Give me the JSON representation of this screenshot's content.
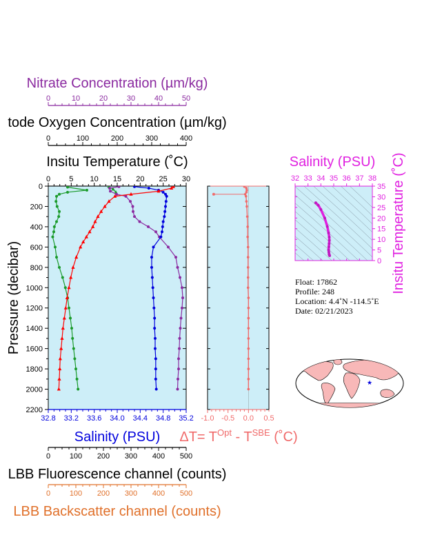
{
  "colors": {
    "panel_bg": "#cdeef8",
    "nitrate": "#8b2aa0",
    "oxygen": "#000000",
    "temperature": "#ff0000",
    "salinity": "#0000dd",
    "fluorescence": "#000000",
    "backscatter": "#e0702a",
    "delta_t": "#f06a6a",
    "ts_magenta": "#e020e0",
    "chlorophyll_green": "#1a9a2a"
  },
  "chart_data": [
    {
      "type": "line",
      "panel": "main profile",
      "ylabel": "Pressure (decibar)",
      "ylim": [
        2200,
        0
      ],
      "y_ticks": [
        "0",
        "200",
        "400",
        "600",
        "800",
        "1000",
        "1200",
        "1400",
        "1600",
        "1800",
        "2000",
        "2200"
      ],
      "axes": {
        "nitrate": {
          "label": "Nitrate Concentration (µm/kg)",
          "range": [
            0,
            50
          ],
          "ticks": [
            "0",
            "10",
            "20",
            "30",
            "40",
            "50"
          ]
        },
        "oxygen": {
          "label": "tode Oxygen Concentration (µm/kg)",
          "range": [
            0,
            400
          ],
          "ticks": [
            "0",
            "100",
            "200",
            "300",
            "400"
          ]
        },
        "temperature": {
          "label": "Insitu Temperature (˚C)",
          "range": [
            0,
            30
          ],
          "ticks": [
            "0",
            "5",
            "10",
            "15",
            "20",
            "25",
            "30"
          ]
        },
        "salinity": {
          "label": "Salinity (PSU)",
          "range": [
            32.8,
            35.2
          ],
          "ticks": [
            "32.8",
            "33.2",
            "33.6",
            "34.0",
            "34.4",
            "34.8",
            "35.2"
          ]
        },
        "fluorescence": {
          "label": "LBB Fluorescence channel (counts)",
          "range": [
            0,
            500
          ],
          "ticks": [
            "0",
            "100",
            "200",
            "300",
            "400",
            "500"
          ]
        },
        "backscatter": {
          "label": "LBB Backscatter channel (counts)",
          "range": [
            0,
            500
          ],
          "ticks": [
            "0",
            "100",
            "200",
            "300",
            "400",
            "500"
          ]
        }
      },
      "series": [
        {
          "key": "temperature",
          "pressure": [
            5,
            20,
            50,
            80,
            100,
            150,
            200,
            250,
            300,
            350,
            400,
            450,
            500,
            550,
            600,
            700,
            800,
            900,
            1000,
            1100,
            1200,
            1300,
            1400,
            1500,
            1600,
            1700,
            1800,
            1900,
            2000
          ],
          "values": [
            27.2,
            26.8,
            24.0,
            18.0,
            14.5,
            13.2,
            12.3,
            11.5,
            10.8,
            10.2,
            9.7,
            9.0,
            8.3,
            7.6,
            7.0,
            6.1,
            5.4,
            4.9,
            4.5,
            4.1,
            3.8,
            3.5,
            3.2,
            3.0,
            2.8,
            2.6,
            2.5,
            2.4,
            2.3
          ]
        },
        {
          "key": "salinity",
          "pressure": [
            5,
            20,
            40,
            60,
            80,
            100,
            150,
            200,
            250,
            300,
            350,
            400,
            450,
            500,
            600,
            700,
            800,
            900,
            1000,
            1100,
            1200,
            1300,
            1400,
            1500,
            1600,
            1700,
            1800,
            1900,
            2000
          ],
          "values": [
            34.3,
            34.55,
            34.72,
            34.8,
            34.84,
            34.86,
            34.85,
            34.84,
            34.83,
            34.82,
            34.8,
            34.79,
            34.78,
            34.76,
            34.63,
            34.6,
            34.6,
            34.61,
            34.62,
            34.63,
            34.64,
            34.65,
            34.65,
            34.66,
            34.66,
            34.67,
            34.67,
            34.67,
            34.68
          ]
        },
        {
          "key": "oxygen",
          "pressure": [
            5,
            20,
            50,
            80,
            100,
            150,
            200,
            250,
            300,
            350,
            400,
            450,
            500,
            600,
            700,
            800,
            900,
            1000,
            1100,
            1200,
            1300,
            1400,
            1500,
            1600,
            1700,
            1800,
            1900,
            2000
          ],
          "values": [
            205,
            178,
            180,
            198,
            225,
            238,
            245,
            246,
            250,
            265,
            290,
            312,
            322,
            348,
            370,
            375,
            382,
            388,
            390,
            388,
            385,
            383,
            381,
            380,
            378,
            378,
            376,
            375
          ]
        },
        {
          "key": "nitrate",
          "pressure": [
            5,
            30,
            60
          ],
          "values": [
            22.0,
            23.5,
            24.5
          ]
        },
        {
          "key": "fluorescence",
          "pressure": [
            10,
            40,
            60,
            80,
            100,
            150,
            200,
            250,
            300,
            350,
            400,
            450,
            500,
            600,
            700,
            800,
            900,
            1000,
            1100,
            1200,
            1300,
            1400,
            1500,
            1600,
            1700,
            1800,
            1900,
            2000
          ],
          "values": [
            70,
            140,
            70,
            40,
            30,
            28,
            32,
            40,
            38,
            30,
            22,
            20,
            16,
            25,
            30,
            40,
            52,
            62,
            70,
            75,
            80,
            85,
            88,
            92,
            96,
            100,
            104,
            108
          ]
        },
        {
          "key": "backscatter",
          "pressure": [],
          "values": []
        }
      ]
    },
    {
      "type": "line",
      "panel": "delta T",
      "xlabel": "ΔT= T^Opt - T^SBE (˚C)",
      "xlim": [
        -1.0,
        0.5
      ],
      "x_ticks": [
        "-1.0",
        "-0.5",
        "0.0",
        "0.5"
      ],
      "ylim": [
        2200,
        0
      ],
      "series": [
        {
          "name": "ΔT",
          "pressure": [
            5,
            20,
            40,
            60,
            80,
            100,
            150,
            200,
            300,
            400,
            500,
            600,
            700,
            800,
            900,
            1000,
            1100,
            1200,
            1300,
            1400,
            1500,
            1600,
            1700,
            1800,
            1900,
            2000
          ],
          "values": [
            -0.1,
            -0.05,
            -0.04,
            -0.05,
            -0.08,
            -0.06,
            -0.05,
            -0.04,
            -0.03,
            -0.02,
            -0.02,
            -0.01,
            -0.01,
            -0.01,
            -0.01,
            -0.01,
            0.0,
            0.0,
            0.0,
            0.0,
            0.0,
            0.0,
            0.0,
            0.0,
            0.0,
            0.0
          ]
        },
        {
          "name": "ΔT outlier",
          "pressure": [
            80
          ],
          "values": [
            -0.85
          ]
        }
      ]
    },
    {
      "type": "scatter",
      "panel": "T-S diagram",
      "title": "Salinity (PSU)",
      "ylabel": "Insitu Temperature (˚C)",
      "xlim": [
        32,
        38
      ],
      "ylim": [
        0,
        35
      ],
      "x_ticks": [
        "32",
        "33",
        "34",
        "35",
        "36",
        "37",
        "38"
      ],
      "y_ticks": [
        "0",
        "5",
        "10",
        "15",
        "20",
        "25",
        "30",
        "35"
      ],
      "series": [
        {
          "name": "profile",
          "salinity": [
            33.6,
            33.8,
            34.0,
            34.3,
            34.5,
            34.6,
            34.65,
            34.66,
            34.64,
            34.62,
            34.6,
            34.62,
            34.64,
            34.66,
            34.68
          ],
          "temperature": [
            27.2,
            26.0,
            24.0,
            20.0,
            16.0,
            13.0,
            11.0,
            9.5,
            8.0,
            6.5,
            5.0,
            4.0,
            3.0,
            2.6,
            2.3
          ]
        }
      ]
    }
  ],
  "info": {
    "float": "Float:  17862",
    "profile": "Profile:  248",
    "location": "Location:  4.4˚N  -114.5˚E",
    "date": "Date:  02/21/2023"
  },
  "map": {
    "marker_lat": 4.4,
    "marker_lon": -114.5
  }
}
